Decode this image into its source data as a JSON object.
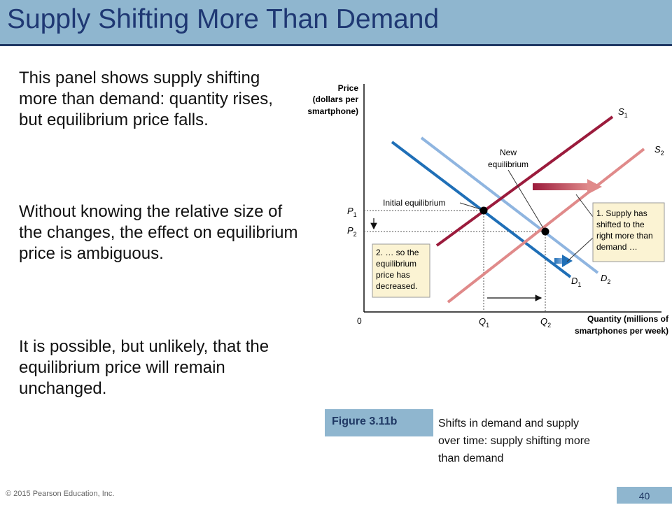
{
  "slide": {
    "title": "Supply Shifting More Than Demand",
    "paragraphs": [
      "This panel shows supply shifting more than demand: quantity rises, but equilibrium price falls.",
      "Without knowing the relative size of the changes, the effect on equilibrium price is ambiguous.",
      "It is possible, but unlikely, that the equilibrium price will remain unchanged."
    ],
    "figure_label": "Figure 3.11b",
    "figure_caption": "Shifts in demand and supply over time: supply shifting more than demand",
    "copyright": "© 2015 Pearson Education, Inc.",
    "page_number": "40"
  },
  "diagram": {
    "y_axis_label": [
      "Price",
      "(dollars per",
      "smartphone)"
    ],
    "x_axis_label": [
      "Quantity (millions of",
      "smartphones per week)"
    ],
    "origin": "0",
    "ticks": {
      "p1": "P",
      "p1_sub": "1",
      "p2": "P",
      "p2_sub": "2",
      "q1": "Q",
      "q1_sub": "1",
      "q2": "Q",
      "q2_sub": "2"
    },
    "curves": {
      "s1": "S",
      "s1_sub": "1",
      "s2": "S",
      "s2_sub": "2",
      "d1": "D",
      "d1_sub": "1",
      "d2": "D",
      "d2_sub": "2"
    },
    "labels": {
      "initial": "Initial equilibrium",
      "new": [
        "New",
        "equilibrium"
      ],
      "callout1": [
        "1. Supply has",
        "shifted to the",
        "right more than",
        "demand …"
      ],
      "callout2": [
        "2. … so the",
        "equilibrium",
        "price has",
        "decreased."
      ]
    },
    "colors": {
      "s1": "#9b1b3c",
      "s2": "#e08a8a",
      "d1": "#1f6fb7",
      "d2": "#8fb5e0",
      "callout": "#fbf3d3"
    }
  }
}
